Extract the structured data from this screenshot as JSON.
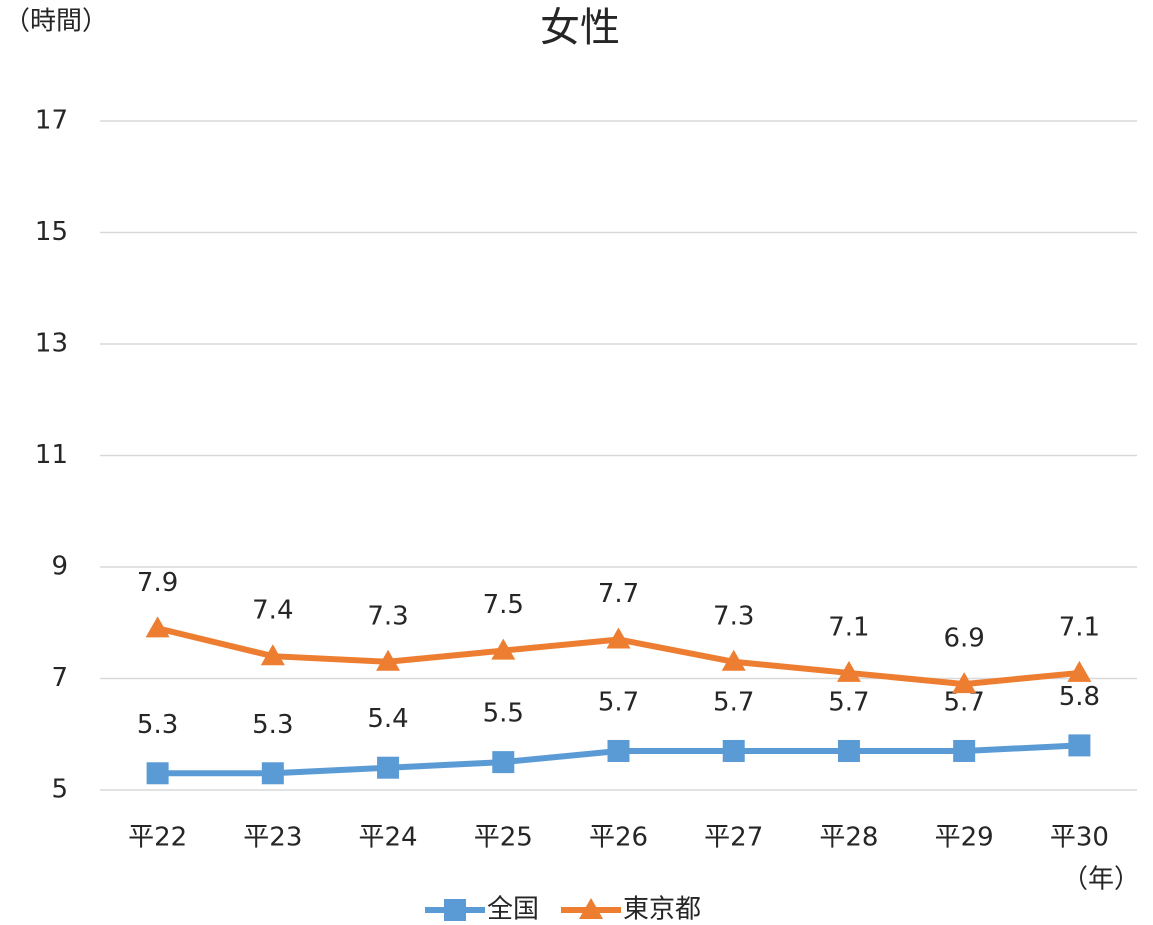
{
  "chart_data": {
    "type": "line",
    "title": "女性",
    "y_unit": "（時間）",
    "x_unit": "（年）",
    "categories": [
      "平22",
      "平23",
      "平24",
      "平25",
      "平26",
      "平27",
      "平28",
      "平29",
      "平30"
    ],
    "series": [
      {
        "name": "全国",
        "color": "#5b9bd5",
        "marker": "square",
        "values": [
          5.3,
          5.3,
          5.4,
          5.5,
          5.7,
          5.7,
          5.7,
          5.7,
          5.8
        ]
      },
      {
        "name": "東京都",
        "color": "#ed7d31",
        "marker": "triangle",
        "values": [
          7.9,
          7.4,
          7.3,
          7.5,
          7.7,
          7.3,
          7.1,
          6.9,
          7.1
        ]
      }
    ],
    "ylim": [
      5,
      17
    ],
    "yticks": [
      5,
      7,
      9,
      11,
      13,
      15,
      17
    ],
    "grid": true,
    "legend": "bottom"
  }
}
